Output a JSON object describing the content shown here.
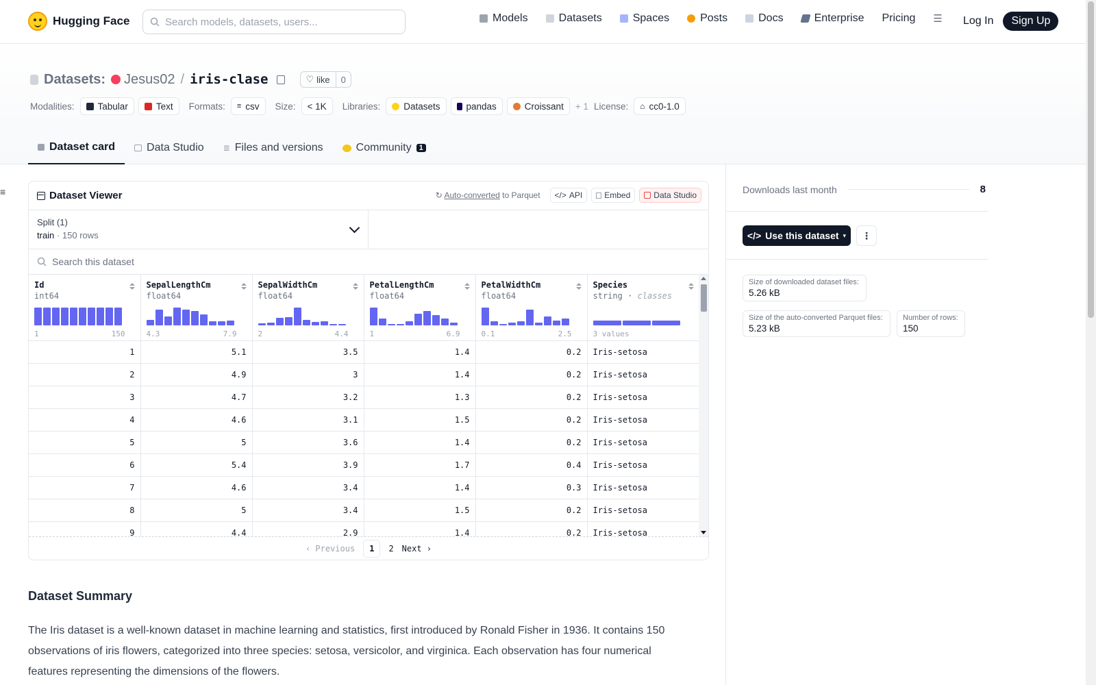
{
  "nav": {
    "brand": "Hugging Face",
    "search_placeholder": "Search models, datasets, users...",
    "items": [
      "Models",
      "Datasets",
      "Spaces",
      "Posts",
      "Docs",
      "Enterprise",
      "Pricing"
    ],
    "login": "Log In",
    "signup": "Sign Up"
  },
  "repo": {
    "section": "Datasets:",
    "owner": "Jesus02",
    "name": "iris-clase",
    "like_label": "like",
    "like_count": "0"
  },
  "tags": {
    "modalities_label": "Modalities:",
    "modalities": [
      "Tabular",
      "Text"
    ],
    "formats_label": "Formats:",
    "formats": [
      "csv"
    ],
    "size_label": "Size:",
    "size": "< 1K",
    "libraries_label": "Libraries:",
    "libraries": [
      "Datasets",
      "pandas",
      "Croissant"
    ],
    "libraries_more": "+ 1",
    "license_label": "License:",
    "license": "cc0-1.0"
  },
  "tabs": [
    {
      "label": "Dataset card"
    },
    {
      "label": "Data Studio"
    },
    {
      "label": "Files and versions"
    },
    {
      "label": "Community",
      "badge": "1"
    }
  ],
  "viewer": {
    "title": "Dataset Viewer",
    "auto_converted": "Auto-converted",
    "to_parquet": "to Parquet",
    "api": "API",
    "embed": "Embed",
    "data_studio": "Data Studio",
    "split_label": "Split (1)",
    "split_name": "train",
    "split_rows": "150 rows",
    "search_placeholder": "Search this dataset",
    "columns": [
      {
        "name": "Id",
        "type": "int64",
        "min": "1",
        "max": "150",
        "hist": [
          1,
          1,
          1,
          1,
          1,
          1,
          1,
          1,
          1,
          1
        ]
      },
      {
        "name": "SepalLengthCm",
        "type": "float64",
        "min": "4.3",
        "max": "7.9",
        "hist": [
          0.3,
          0.85,
          0.5,
          1,
          0.85,
          0.8,
          0.6,
          0.2,
          0.2,
          0.25
        ]
      },
      {
        "name": "SepalWidthCm",
        "type": "float64",
        "min": "2",
        "max": "4.4",
        "hist": [
          0.08,
          0.15,
          0.4,
          0.45,
          1,
          0.3,
          0.18,
          0.2,
          0.05,
          0.05
        ]
      },
      {
        "name": "PetalLengthCm",
        "type": "float64",
        "min": "1",
        "max": "6.9",
        "hist": [
          1,
          0.35,
          0,
          0.05,
          0.2,
          0.65,
          0.8,
          0.55,
          0.35,
          0.15
        ]
      },
      {
        "name": "PetalWidthCm",
        "type": "float64",
        "min": "0.1",
        "max": "2.5",
        "hist": [
          1,
          0.2,
          0.05,
          0.15,
          0.2,
          0.85,
          0.15,
          0.5,
          0.25,
          0.35
        ]
      },
      {
        "name": "Species",
        "type": "string",
        "type_extra": "classes",
        "min": "3 values",
        "max": "",
        "hist": [
          1,
          1,
          1
        ]
      }
    ],
    "rows": [
      [
        "1",
        "5.1",
        "3.5",
        "1.4",
        "0.2",
        "Iris-setosa"
      ],
      [
        "2",
        "4.9",
        "3",
        "1.4",
        "0.2",
        "Iris-setosa"
      ],
      [
        "3",
        "4.7",
        "3.2",
        "1.3",
        "0.2",
        "Iris-setosa"
      ],
      [
        "4",
        "4.6",
        "3.1",
        "1.5",
        "0.2",
        "Iris-setosa"
      ],
      [
        "5",
        "5",
        "3.6",
        "1.4",
        "0.2",
        "Iris-setosa"
      ],
      [
        "6",
        "5.4",
        "3.9",
        "1.7",
        "0.4",
        "Iris-setosa"
      ],
      [
        "7",
        "4.6",
        "3.4",
        "1.4",
        "0.3",
        "Iris-setosa"
      ],
      [
        "8",
        "5",
        "3.4",
        "1.5",
        "0.2",
        "Iris-setosa"
      ],
      [
        "9",
        "4.4",
        "2.9",
        "1.4",
        "0.2",
        "Iris-setosa"
      ]
    ],
    "pager": {
      "prev": "Previous",
      "pages": [
        "1",
        "2"
      ],
      "current": "1",
      "next": "Next"
    }
  },
  "summary": {
    "title": "Dataset Summary",
    "text": "The Iris dataset is a well-known dataset in machine learning and statistics, first introduced by Ronald Fisher in 1936. It contains 150 observations of iris flowers, categorized into three species: setosa, versicolor, and virginica. Each observation has four numerical features representing the dimensions of the flowers."
  },
  "sidebar": {
    "downloads_label": "Downloads last month",
    "downloads_value": "8",
    "use_button": "Use this dataset",
    "stats": [
      {
        "label": "Size of downloaded dataset files:",
        "value": "5.26 kB"
      },
      {
        "label": "Size of the auto-converted Parquet files:",
        "value": "5.23 kB"
      },
      {
        "label": "Number of rows:",
        "value": "150"
      }
    ]
  },
  "colors": {
    "accent": "#6366f1",
    "dark": "#111827",
    "brand": "#ffd21e"
  }
}
